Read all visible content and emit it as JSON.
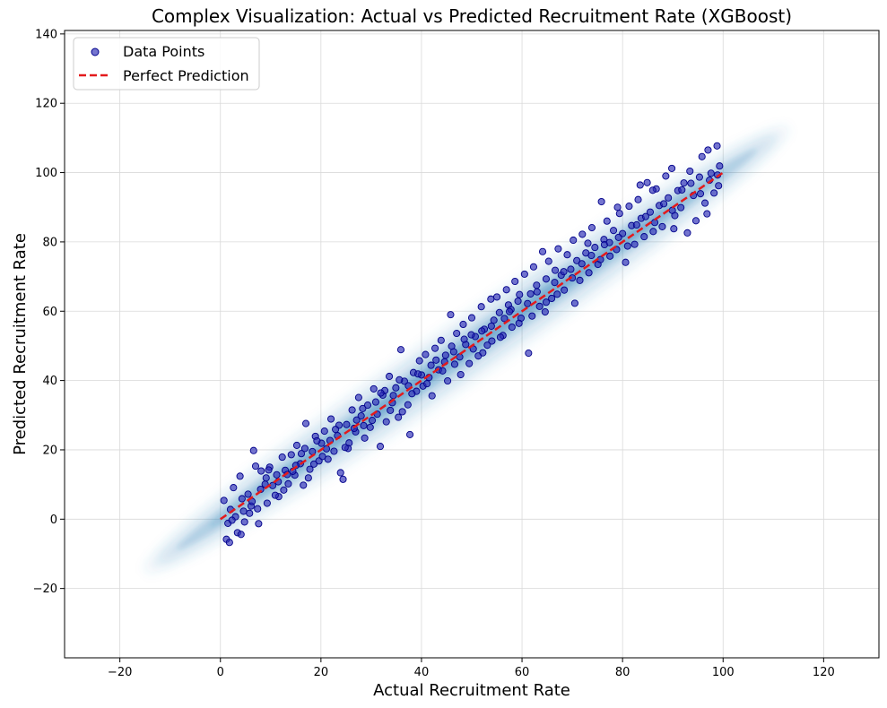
{
  "chart_data": {
    "type": "scatter",
    "title": "Complex Visualization: Actual vs Predicted Recruitment Rate (XGBoost)",
    "xlabel": "Actual Recruitment Rate",
    "ylabel": "Predicted Recruitment Rate",
    "xlim": [
      -31,
      131
    ],
    "ylim": [
      -40,
      141
    ],
    "xticks": [
      -20,
      0,
      20,
      40,
      60,
      80,
      100,
      120
    ],
    "yticks": [
      -20,
      0,
      20,
      40,
      60,
      80,
      100,
      120,
      140
    ],
    "grid": true,
    "legend_position": "top-left",
    "legend": [
      "Data Points",
      "Perfect Prediction"
    ],
    "series": [
      {
        "name": "Data Points",
        "kind": "scatter",
        "color": "#2b2bb5",
        "edge_color": "#00008b",
        "points": [
          [
            1.2,
            -5.8
          ],
          [
            1.8,
            -6.7
          ],
          [
            2.0,
            2.8
          ],
          [
            2.6,
            9.1
          ],
          [
            3.4,
            -3.9
          ],
          [
            3.9,
            12.4
          ],
          [
            4.3,
            5.9
          ],
          [
            4.8,
            -0.8
          ],
          [
            5.5,
            7.2
          ],
          [
            6.1,
            3.8
          ],
          [
            6.6,
            19.8
          ],
          [
            7.0,
            15.3
          ],
          [
            7.6,
            -1.3
          ],
          [
            8.1,
            13.9
          ],
          [
            8.9,
            10.1
          ],
          [
            9.3,
            4.6
          ],
          [
            9.8,
            15.0
          ],
          [
            10.4,
            9.7
          ],
          [
            11.2,
            12.8
          ],
          [
            11.6,
            6.5
          ],
          [
            12.3,
            17.9
          ],
          [
            12.9,
            14.1
          ],
          [
            13.5,
            10.2
          ],
          [
            14.1,
            18.6
          ],
          [
            14.8,
            12.7
          ],
          [
            15.2,
            21.3
          ],
          [
            15.9,
            16.0
          ],
          [
            16.5,
            9.8
          ],
          [
            17.0,
            27.6
          ],
          [
            17.8,
            14.4
          ],
          [
            18.3,
            19.5
          ],
          [
            18.9,
            23.9
          ],
          [
            19.6,
            16.8
          ],
          [
            20.1,
            21.9
          ],
          [
            20.7,
            25.4
          ],
          [
            21.4,
            17.3
          ],
          [
            22.0,
            28.9
          ],
          [
            22.6,
            19.6
          ],
          [
            23.3,
            24.1
          ],
          [
            23.9,
            13.4
          ],
          [
            24.4,
            11.5
          ],
          [
            25.1,
            27.3
          ],
          [
            25.6,
            22.0
          ],
          [
            26.2,
            31.5
          ],
          [
            26.9,
            25.2
          ],
          [
            27.5,
            35.1
          ],
          [
            28.0,
            29.8
          ],
          [
            28.7,
            23.4
          ],
          [
            29.3,
            32.9
          ],
          [
            29.8,
            26.5
          ],
          [
            30.5,
            37.6
          ],
          [
            31.2,
            30.3
          ],
          [
            31.8,
            21.0
          ],
          [
            32.3,
            35.8
          ],
          [
            33.0,
            28.1
          ],
          [
            33.6,
            41.2
          ],
          [
            34.2,
            33.6
          ],
          [
            34.9,
            37.9
          ],
          [
            35.4,
            29.4
          ],
          [
            35.9,
            48.9
          ],
          [
            36.6,
            39.8
          ],
          [
            37.3,
            33.0
          ],
          [
            37.7,
            24.4
          ],
          [
            38.4,
            42.3
          ],
          [
            39.0,
            36.9
          ],
          [
            39.6,
            45.7
          ],
          [
            40.3,
            38.4
          ],
          [
            40.8,
            47.5
          ],
          [
            41.5,
            40.9
          ],
          [
            42.1,
            35.6
          ],
          [
            42.7,
            49.3
          ],
          [
            43.4,
            43.1
          ],
          [
            43.9,
            51.6
          ],
          [
            44.6,
            45.4
          ],
          [
            45.2,
            39.9
          ],
          [
            45.8,
            59.0
          ],
          [
            46.4,
            48.3
          ],
          [
            47.0,
            53.6
          ],
          [
            47.6,
            46.8
          ],
          [
            48.3,
            56.2
          ],
          [
            48.8,
            50.4
          ],
          [
            49.5,
            44.9
          ],
          [
            50.0,
            58.1
          ],
          [
            50.7,
            52.7
          ],
          [
            51.3,
            47.1
          ],
          [
            51.9,
            61.3
          ],
          [
            52.5,
            54.8
          ],
          [
            53.1,
            50.2
          ],
          [
            53.8,
            63.5
          ],
          [
            54.4,
            57.4
          ],
          [
            55.0,
            64.1
          ],
          [
            55.5,
            59.6
          ],
          [
            56.2,
            53.0
          ],
          [
            56.9,
            66.2
          ],
          [
            57.3,
            61.8
          ],
          [
            58.0,
            55.4
          ],
          [
            58.6,
            68.6
          ],
          [
            59.2,
            62.9
          ],
          [
            59.8,
            58.0
          ],
          [
            60.5,
            70.7
          ],
          [
            61.3,
            47.9
          ],
          [
            61.7,
            65.0
          ],
          [
            62.3,
            72.8
          ],
          [
            62.9,
            67.5
          ],
          [
            63.5,
            61.4
          ],
          [
            64.1,
            77.2
          ],
          [
            64.8,
            69.3
          ],
          [
            65.3,
            74.4
          ],
          [
            65.9,
            63.7
          ],
          [
            66.6,
            71.8
          ],
          [
            67.2,
            78.0
          ],
          [
            67.8,
            70.4
          ],
          [
            68.4,
            66.1
          ],
          [
            69.0,
            76.3
          ],
          [
            69.7,
            72.1
          ],
          [
            70.2,
            80.5
          ],
          [
            70.9,
            74.6
          ],
          [
            71.5,
            68.9
          ],
          [
            72.0,
            82.2
          ],
          [
            72.7,
            76.8
          ],
          [
            73.3,
            71.1
          ],
          [
            73.9,
            84.1
          ],
          [
            74.5,
            78.4
          ],
          [
            75.1,
            73.5
          ],
          [
            75.8,
            91.6
          ],
          [
            76.3,
            80.7
          ],
          [
            76.9,
            86.0
          ],
          [
            77.5,
            75.9
          ],
          [
            78.2,
            83.3
          ],
          [
            78.8,
            77.8
          ],
          [
            79.4,
            88.2
          ],
          [
            80.0,
            82.4
          ],
          [
            80.6,
            74.1
          ],
          [
            81.3,
            90.3
          ],
          [
            81.8,
            84.7
          ],
          [
            82.4,
            79.3
          ],
          [
            83.1,
            92.2
          ],
          [
            83.7,
            86.8
          ],
          [
            84.3,
            81.5
          ],
          [
            84.9,
            97.1
          ],
          [
            85.5,
            88.6
          ],
          [
            86.1,
            83.0
          ],
          [
            86.7,
            95.3
          ],
          [
            87.3,
            90.5
          ],
          [
            87.9,
            84.4
          ],
          [
            88.6,
            99.0
          ],
          [
            89.1,
            92.7
          ],
          [
            89.8,
            101.2
          ],
          [
            90.4,
            87.6
          ],
          [
            91.0,
            94.8
          ],
          [
            91.6,
            89.9
          ],
          [
            92.2,
            97.0
          ],
          [
            92.9,
            82.6
          ],
          [
            93.4,
            100.4
          ],
          [
            94.1,
            93.4
          ],
          [
            94.6,
            86.1
          ],
          [
            95.3,
            98.7
          ],
          [
            95.8,
            104.6
          ],
          [
            96.4,
            91.2
          ],
          [
            97.0,
            106.5
          ],
          [
            97.6,
            99.8
          ],
          [
            98.2,
            94.1
          ],
          [
            98.8,
            107.7
          ],
          [
            99.3,
            101.9
          ],
          [
            99.1,
            96.2
          ],
          [
            96.8,
            88.1
          ],
          [
            90.2,
            83.8
          ],
          [
            86.0,
            94.9
          ],
          [
            83.5,
            96.4
          ],
          [
            79.0,
            90.0
          ],
          [
            76.4,
            79.2
          ],
          [
            73.1,
            79.6
          ],
          [
            70.5,
            62.3
          ],
          [
            67.0,
            64.9
          ],
          [
            64.6,
            59.8
          ],
          [
            62.0,
            58.6
          ],
          [
            59.5,
            64.8
          ],
          [
            57.8,
            60.5
          ],
          [
            56.5,
            57.9
          ],
          [
            54.0,
            51.4
          ],
          [
            52.2,
            48.0
          ],
          [
            49.9,
            53.2
          ],
          [
            47.8,
            41.7
          ],
          [
            46.0,
            49.9
          ],
          [
            44.2,
            42.8
          ],
          [
            41.9,
            44.4
          ],
          [
            40.0,
            41.6
          ],
          [
            38.1,
            36.2
          ],
          [
            36.2,
            31.0
          ],
          [
            34.4,
            35.7
          ],
          [
            32.7,
            37.1
          ],
          [
            30.9,
            33.8
          ],
          [
            28.5,
            27.0
          ],
          [
            27.1,
            28.6
          ],
          [
            25.4,
            20.4
          ],
          [
            23.6,
            27.1
          ],
          [
            21.8,
            22.7
          ],
          [
            20.3,
            18.1
          ],
          [
            18.6,
            15.9
          ],
          [
            16.8,
            20.4
          ],
          [
            15.0,
            15.5
          ],
          [
            13.3,
            12.9
          ],
          [
            11.5,
            10.8
          ],
          [
            9.6,
            14.2
          ],
          [
            8.0,
            8.6
          ],
          [
            6.3,
            5.1
          ],
          [
            4.6,
            2.3
          ],
          [
            3.0,
            0.7
          ],
          [
            1.5,
            -1.2
          ],
          [
            0.7,
            5.4
          ],
          [
            2.3,
            -0.3
          ],
          [
            4.1,
            -4.4
          ],
          [
            5.8,
            1.7
          ],
          [
            7.4,
            3.0
          ],
          [
            9.1,
            11.9
          ],
          [
            10.9,
            6.9
          ],
          [
            12.6,
            8.4
          ],
          [
            14.4,
            13.8
          ],
          [
            16.1,
            18.9
          ],
          [
            17.5,
            11.9
          ],
          [
            19.2,
            22.6
          ],
          [
            21.1,
            20.3
          ],
          [
            22.9,
            25.9
          ],
          [
            24.8,
            20.7
          ],
          [
            26.6,
            26.2
          ],
          [
            28.3,
            31.9
          ],
          [
            30.2,
            28.5
          ],
          [
            31.9,
            36.4
          ],
          [
            33.8,
            31.4
          ],
          [
            35.6,
            40.2
          ],
          [
            37.4,
            38.5
          ],
          [
            39.3,
            41.9
          ],
          [
            41.1,
            39.1
          ],
          [
            42.9,
            45.9
          ],
          [
            44.8,
            47.3
          ],
          [
            46.6,
            44.7
          ],
          [
            48.5,
            51.9
          ],
          [
            50.3,
            49.1
          ],
          [
            52.0,
            54.3
          ],
          [
            53.9,
            55.7
          ],
          [
            55.7,
            52.5
          ],
          [
            57.5,
            59.9
          ],
          [
            59.4,
            56.5
          ],
          [
            61.1,
            62.2
          ],
          [
            63.0,
            65.6
          ],
          [
            64.8,
            62.6
          ],
          [
            66.5,
            68.3
          ],
          [
            68.3,
            71.4
          ],
          [
            70.0,
            69.6
          ],
          [
            71.9,
            73.7
          ],
          [
            73.8,
            76.1
          ],
          [
            75.6,
            74.9
          ],
          [
            77.4,
            79.8
          ],
          [
            79.2,
            81.3
          ],
          [
            81.0,
            78.8
          ],
          [
            82.8,
            84.9
          ],
          [
            84.6,
            87.3
          ],
          [
            86.4,
            85.6
          ],
          [
            88.2,
            91.0
          ],
          [
            89.9,
            89.1
          ],
          [
            91.8,
            95.0
          ],
          [
            93.6,
            96.9
          ],
          [
            95.5,
            93.9
          ],
          [
            97.3,
            97.8
          ],
          [
            98.9,
            99.3
          ]
        ]
      },
      {
        "name": "Perfect Prediction",
        "kind": "line",
        "color": "#e31a1c",
        "x": [
          0,
          100
        ],
        "y": [
          0,
          100
        ]
      }
    ],
    "density_band": {
      "color": "#2a7fb8",
      "x_range": [
        -15,
        113
      ]
    }
  }
}
